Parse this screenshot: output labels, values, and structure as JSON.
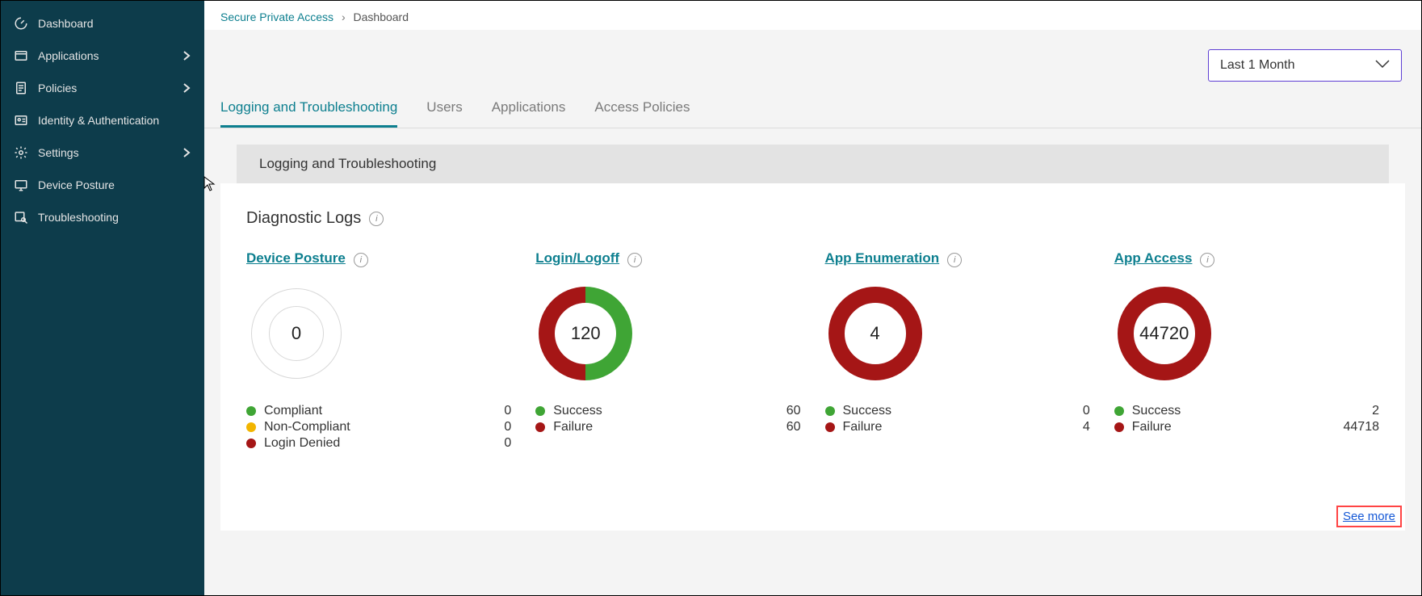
{
  "sidebar": {
    "items": [
      {
        "key": "dashboard",
        "label": "Dashboard",
        "icon": "gauge-icon",
        "expandable": false
      },
      {
        "key": "applications",
        "label": "Applications",
        "icon": "window-icon",
        "expandable": true
      },
      {
        "key": "policies",
        "label": "Policies",
        "icon": "clipboard-icon",
        "expandable": true
      },
      {
        "key": "identity",
        "label": "Identity & Authentication",
        "icon": "id-card-icon",
        "expandable": false
      },
      {
        "key": "settings",
        "label": "Settings",
        "icon": "gear-icon",
        "expandable": true
      },
      {
        "key": "posture",
        "label": "Device Posture",
        "icon": "device-icon",
        "expandable": false
      },
      {
        "key": "troubleshooting",
        "label": "Troubleshooting",
        "icon": "magnify-icon",
        "expandable": false
      }
    ]
  },
  "breadcrumb": {
    "parent": "Secure Private Access",
    "separator": "›",
    "current": "Dashboard"
  },
  "time_filter": {
    "selected": "Last 1 Month"
  },
  "tabs": [
    {
      "key": "logging",
      "label": "Logging and Troubleshooting",
      "active": true
    },
    {
      "key": "users",
      "label": "Users",
      "active": false
    },
    {
      "key": "applications",
      "label": "Applications",
      "active": false
    },
    {
      "key": "access_policies",
      "label": "Access Policies",
      "active": false
    }
  ],
  "section_header": "Logging and Troubleshooting",
  "card": {
    "title": "Diagnostic Logs",
    "see_more": "See more",
    "colors": {
      "green": "#3fa535",
      "amber": "#f2b500",
      "red": "#a51616",
      "ring_empty": "#d8d8d8"
    },
    "metrics": [
      {
        "key": "device_posture",
        "title": "Device Posture",
        "total": "0",
        "empty": true,
        "segments": [
          {
            "label": "Compliant",
            "value": 0,
            "color": "#3fa535"
          },
          {
            "label": "Non-Compliant",
            "value": 0,
            "color": "#f2b500"
          },
          {
            "label": "Login Denied",
            "value": 0,
            "color": "#a51616"
          }
        ]
      },
      {
        "key": "login_logoff",
        "title": "Login/Logoff",
        "total": "120",
        "empty": false,
        "segments": [
          {
            "label": "Success",
            "value": 60,
            "color": "#3fa535"
          },
          {
            "label": "Failure",
            "value": 60,
            "color": "#a51616"
          }
        ]
      },
      {
        "key": "app_enumeration",
        "title": "App Enumeration",
        "total": "4",
        "empty": false,
        "segments": [
          {
            "label": "Success",
            "value": 0,
            "color": "#3fa535"
          },
          {
            "label": "Failure",
            "value": 4,
            "color": "#a51616"
          }
        ]
      },
      {
        "key": "app_access",
        "title": "App Access",
        "total": "44720",
        "empty": false,
        "segments": [
          {
            "label": "Success",
            "value": 2,
            "color": "#3fa535"
          },
          {
            "label": "Failure",
            "value": 44718,
            "color": "#a51616"
          }
        ]
      }
    ]
  }
}
